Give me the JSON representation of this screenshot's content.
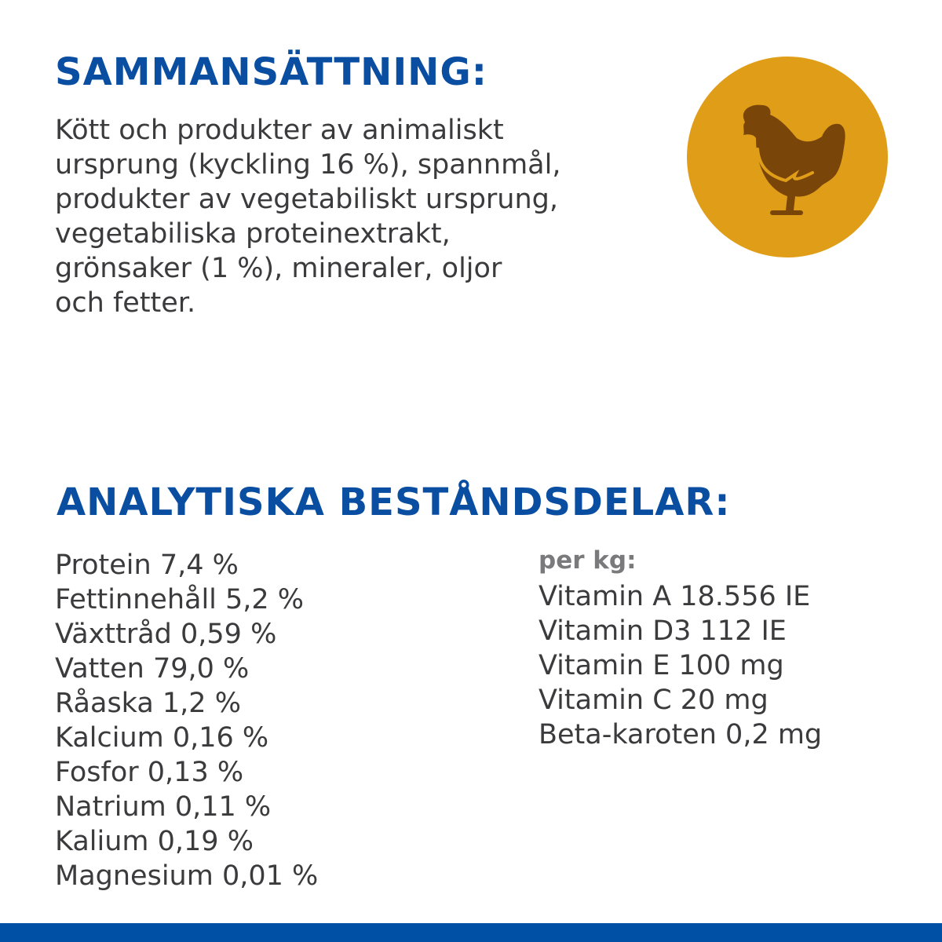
{
  "composition": {
    "heading": "SAMMANSÄTTNING:",
    "lines": [
      "Kött och produkter av animaliskt",
      "ursprung (kyckling 16 %), spannmål,",
      "produkter av vegetabiliskt ursprung,",
      "vegetabiliska proteinextrakt,",
      "grönsaker (1 %), mineraler, oljor",
      "och fetter."
    ],
    "icon": "chicken-icon"
  },
  "analytical": {
    "heading": "ANALYTISKA BESTÅNDSDELAR:",
    "items": [
      "Protein 7,4 %",
      "Fettinnehåll 5,2 %",
      "Växttråd 0,59 %",
      "Vatten 79,0 %",
      "Råaska 1,2 %",
      "Kalcium 0,16 %",
      "Fosfor 0,13 %",
      "Natrium 0,11 %",
      "Kalium 0,19 %",
      "Magnesium 0,01 %"
    ],
    "per_kg_label": "per kg:",
    "per_kg_items": [
      "Vitamin A 18.556 IE",
      "Vitamin D3 112 IE",
      "Vitamin E 100 mg",
      "Vitamin C 20 mg",
      "Beta-karoten 0,2 mg"
    ]
  },
  "colors": {
    "heading": "#0a4ea2",
    "text": "#3b3b3d",
    "badge": "#e09e18",
    "chicken": "#7a4508",
    "bar": "#0051a5"
  }
}
